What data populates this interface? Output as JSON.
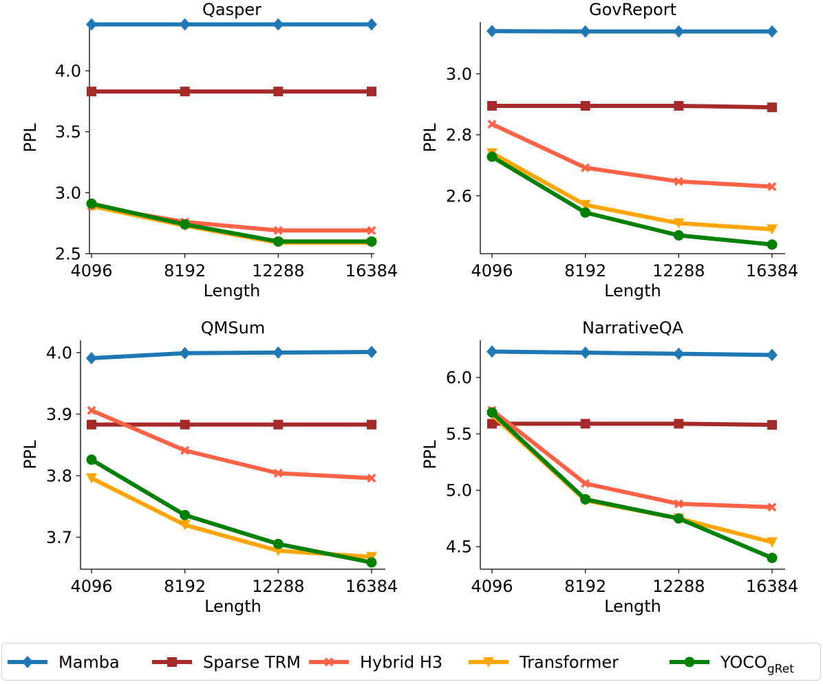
{
  "colors": {
    "Mamba": "#1f77b4",
    "Sparse TRM": "#a52a2a",
    "Hybrid H3": "#ff6347",
    "Transformer": "#ffa500",
    "YOCO": "#008000"
  },
  "legend": {
    "items": [
      {
        "key": "Mamba",
        "label": "Mamba",
        "marker": "diamond"
      },
      {
        "key": "Sparse TRM",
        "label": "Sparse TRM",
        "marker": "square"
      },
      {
        "key": "Hybrid H3",
        "label": "Hybrid H3",
        "marker": "x"
      },
      {
        "key": "Transformer",
        "label": "Transformer",
        "marker": "triangle-down"
      },
      {
        "key": "YOCO",
        "label": "YOCO",
        "subscript": "gRet",
        "marker": "circle"
      }
    ]
  },
  "chart_data": [
    {
      "type": "line",
      "title": "Qasper",
      "xlabel": "Length",
      "ylabel": "PPL",
      "x": [
        4096,
        8192,
        12288,
        16384
      ],
      "ylim": [
        2.5,
        4.4
      ],
      "yticks": [
        2.5,
        3.0,
        3.5,
        4.0
      ],
      "ytick_labels": [
        "2.5",
        "3.0",
        "3.5",
        "4.0"
      ],
      "series": [
        {
          "name": "Mamba",
          "values": [
            4.38,
            4.38,
            4.38,
            4.38
          ]
        },
        {
          "name": "Sparse TRM",
          "values": [
            3.83,
            3.83,
            3.83,
            3.83
          ]
        },
        {
          "name": "Hybrid H3",
          "values": [
            2.89,
            2.76,
            2.69,
            2.69
          ]
        },
        {
          "name": "Transformer",
          "values": [
            2.89,
            2.73,
            2.59,
            2.59
          ]
        },
        {
          "name": "YOCO",
          "values": [
            2.91,
            2.74,
            2.6,
            2.6
          ]
        }
      ]
    },
    {
      "type": "line",
      "title": "GovReport",
      "xlabel": "Length",
      "ylabel": "PPL",
      "x": [
        4096,
        8192,
        12288,
        16384
      ],
      "ylim": [
        2.41,
        3.17
      ],
      "yticks": [
        2.6,
        2.8,
        3.0
      ],
      "ytick_labels": [
        "2.6",
        "2.8",
        "3.0"
      ],
      "series": [
        {
          "name": "Mamba",
          "values": [
            3.14,
            3.139,
            3.139,
            3.139
          ]
        },
        {
          "name": "Sparse TRM",
          "values": [
            2.895,
            2.895,
            2.895,
            2.89
          ]
        },
        {
          "name": "Hybrid H3",
          "values": [
            2.835,
            2.692,
            2.647,
            2.63
          ]
        },
        {
          "name": "Transformer",
          "values": [
            2.74,
            2.57,
            2.51,
            2.49
          ]
        },
        {
          "name": "YOCO",
          "values": [
            2.728,
            2.545,
            2.47,
            2.44
          ]
        }
      ]
    },
    {
      "type": "line",
      "title": "QMSum",
      "xlabel": "Length",
      "ylabel": "PPL",
      "x": [
        4096,
        8192,
        12288,
        16384
      ],
      "ylim": [
        3.648,
        4.02
      ],
      "yticks": [
        3.7,
        3.8,
        3.9,
        4.0
      ],
      "ytick_labels": [
        "3.7",
        "3.8",
        "3.9",
        "4.0"
      ],
      "series": [
        {
          "name": "Mamba",
          "values": [
            3.991,
            3.999,
            4.0,
            4.001
          ]
        },
        {
          "name": "Sparse TRM",
          "values": [
            3.883,
            3.883,
            3.883,
            3.883
          ]
        },
        {
          "name": "Hybrid H3",
          "values": [
            3.906,
            3.841,
            3.804,
            3.796
          ]
        },
        {
          "name": "Transformer",
          "values": [
            3.796,
            3.72,
            3.678,
            3.668
          ]
        },
        {
          "name": "YOCO",
          "values": [
            3.826,
            3.736,
            3.689,
            3.659
          ]
        }
      ]
    },
    {
      "type": "line",
      "title": "NarrativeQA",
      "xlabel": "Length",
      "ylabel": "PPL",
      "x": [
        4096,
        8192,
        12288,
        16384
      ],
      "ylim": [
        4.3,
        6.33
      ],
      "yticks": [
        4.5,
        5.0,
        5.5,
        6.0
      ],
      "ytick_labels": [
        "4.5",
        "5.0",
        "5.5",
        "6.0"
      ],
      "series": [
        {
          "name": "Mamba",
          "values": [
            6.23,
            6.22,
            6.21,
            6.2
          ]
        },
        {
          "name": "Sparse TRM",
          "values": [
            5.59,
            5.59,
            5.59,
            5.58
          ]
        },
        {
          "name": "Hybrid H3",
          "values": [
            5.71,
            5.06,
            4.88,
            4.85
          ]
        },
        {
          "name": "Transformer",
          "values": [
            5.67,
            4.91,
            4.75,
            4.54
          ]
        },
        {
          "name": "YOCO",
          "values": [
            5.69,
            4.92,
            4.75,
            4.4
          ]
        }
      ]
    }
  ]
}
